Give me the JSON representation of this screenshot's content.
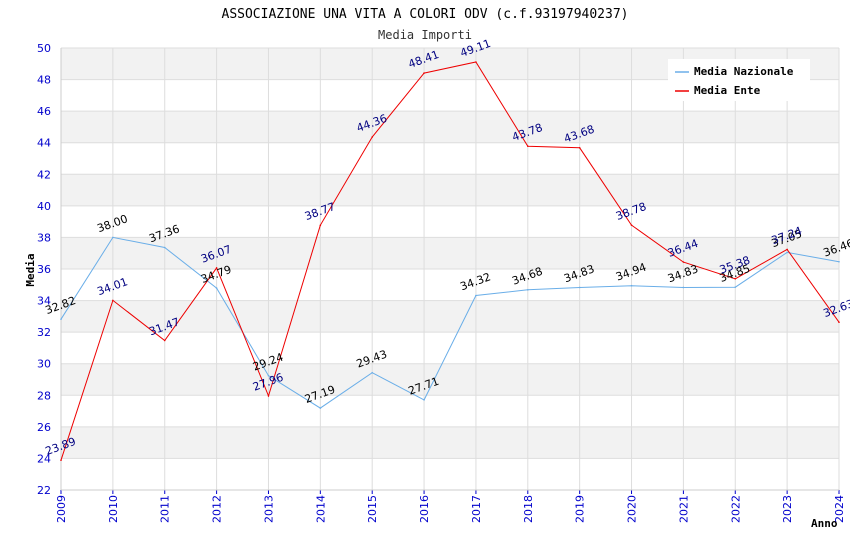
{
  "chart_data": {
    "type": "line",
    "title": "ASSOCIAZIONE UNA VITA A COLORI ODV (c.f.93197940237)",
    "subtitle": "Media Importi",
    "xlabel": "Anno",
    "ylabel": "Media",
    "ylim": [
      22,
      50
    ],
    "yticks": [
      "22",
      "24",
      "26",
      "28",
      "30",
      "32",
      "34",
      "36",
      "38",
      "40",
      "42",
      "44",
      "46",
      "48",
      "50"
    ],
    "categories": [
      "2009",
      "2010",
      "2011",
      "2012",
      "2013",
      "2014",
      "2015",
      "2016",
      "2017",
      "2018",
      "2019",
      "2020",
      "2021",
      "2022",
      "2023",
      "2024"
    ],
    "grid": true,
    "legend_position": "top-right",
    "series": [
      {
        "name": "Media Nazionale",
        "color": "#6aaee8",
        "label_color": "#000000",
        "values": [
          32.82,
          38.0,
          37.36,
          34.79,
          29.24,
          27.19,
          29.43,
          27.71,
          34.32,
          34.68,
          34.83,
          34.94,
          34.83,
          34.85,
          37.05,
          36.46
        ],
        "labels": [
          "32.82",
          "38.00",
          "37.36",
          "34.79",
          "29.24",
          "27.19",
          "29.43",
          "27.71",
          "34.32",
          "34.68",
          "34.83",
          "34.94",
          "34.83",
          "34.85",
          "37.05",
          "36.46"
        ]
      },
      {
        "name": "Media Ente",
        "color": "#ee0000",
        "label_color": "#000080",
        "values": [
          23.89,
          34.01,
          31.47,
          36.07,
          27.96,
          38.77,
          44.36,
          48.41,
          49.11,
          43.78,
          43.68,
          38.78,
          36.44,
          35.38,
          37.24,
          32.63
        ],
        "labels": [
          "23.89",
          "34.01",
          "31.47",
          "36.07",
          "27.96",
          "38.77",
          "44.36",
          "48.41",
          "49.11",
          "43.78",
          "43.68",
          "38.78",
          "36.44",
          "35.38",
          "37.24",
          "32.63"
        ]
      }
    ]
  }
}
